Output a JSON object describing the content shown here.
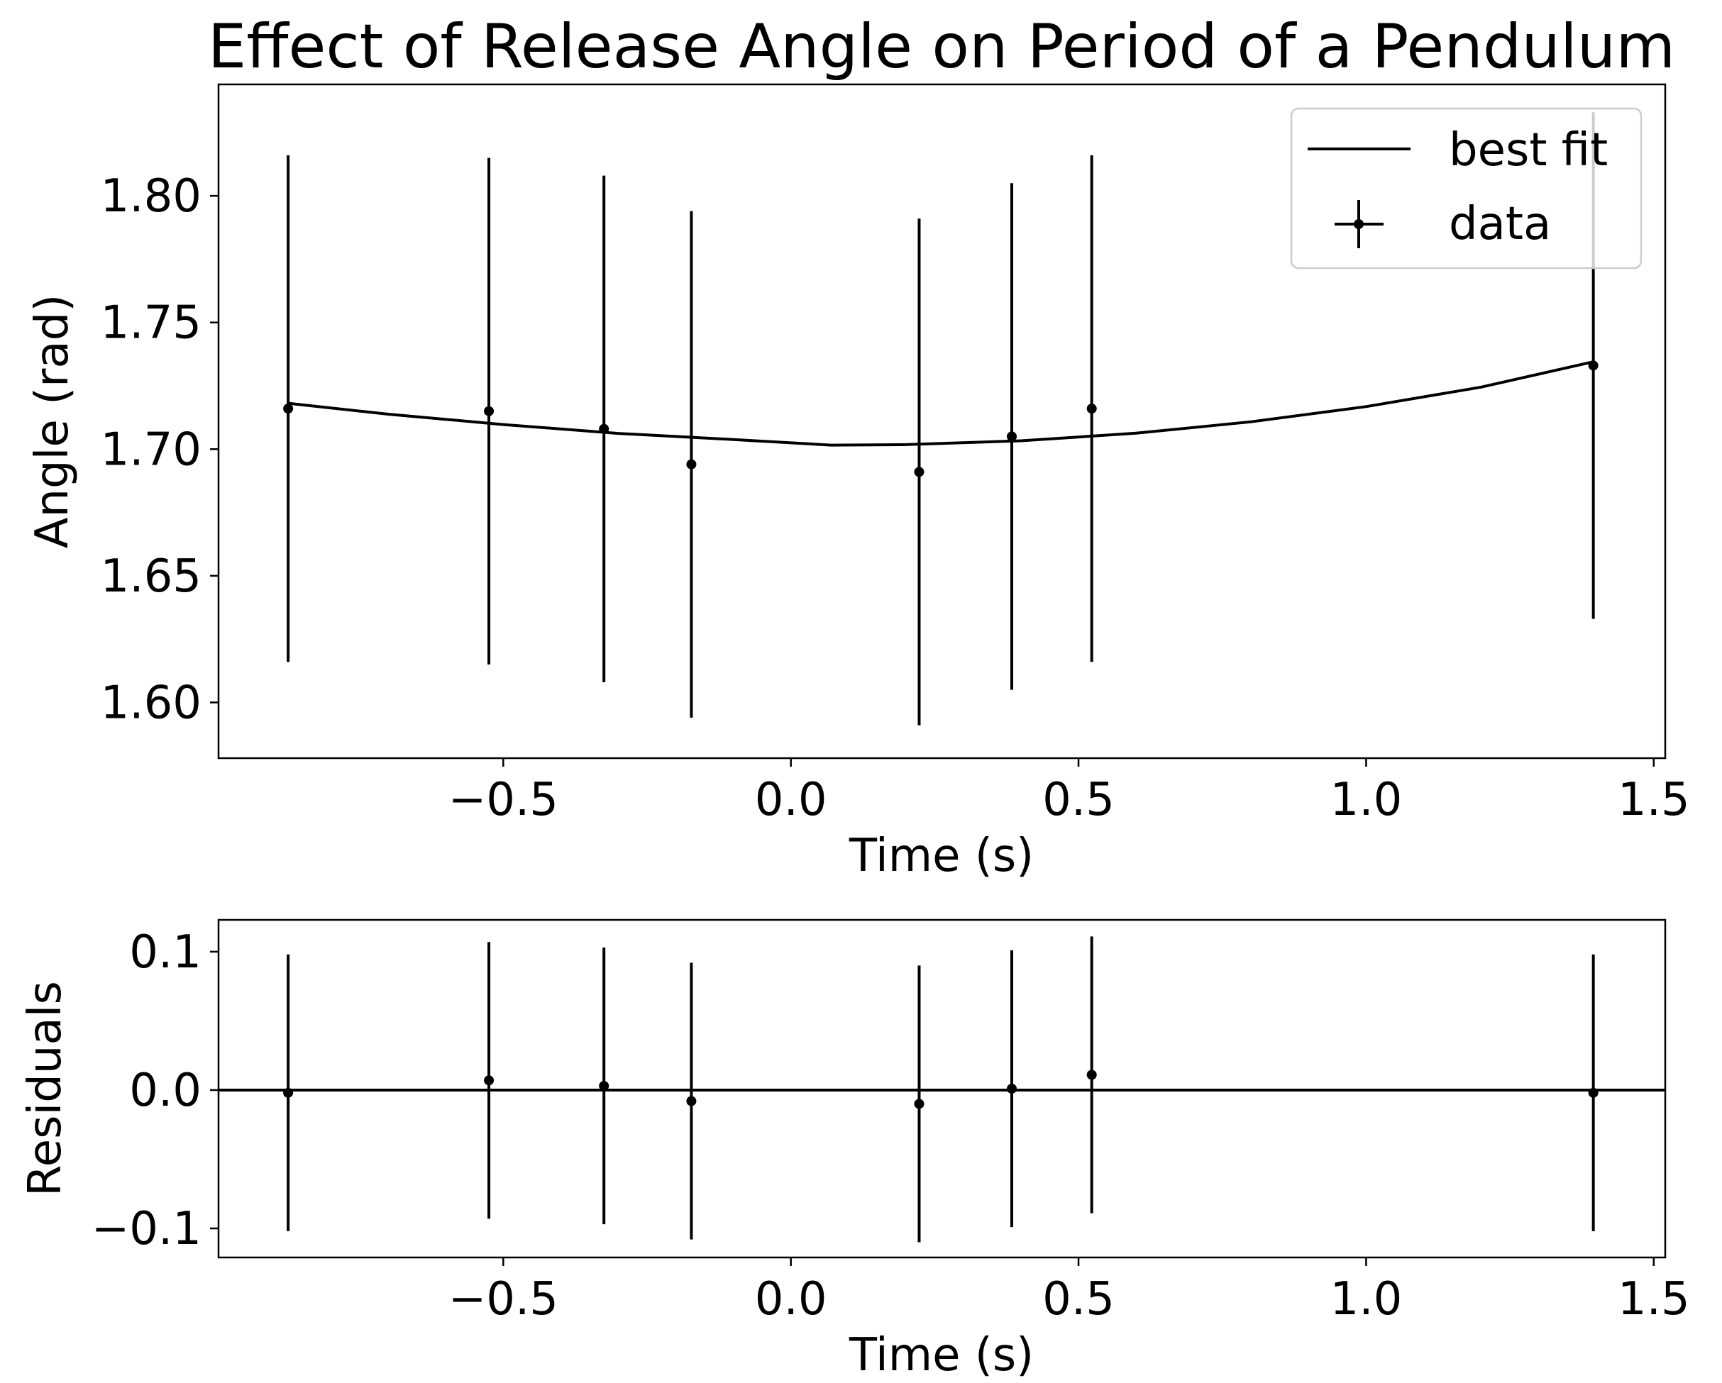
{
  "title": "Effect of Release Angle on Period of a Pendulum",
  "colors": {
    "data": "#000000",
    "fit": "#000000",
    "axes": "#000000",
    "legend_border": "#cccccc"
  },
  "legend": {
    "placement": "top-right",
    "fit_label": "best fit",
    "data_label": "data"
  },
  "chart_data": [
    {
      "panel": "main",
      "type": "line",
      "xlabel": "Time (s)",
      "ylabel": "Angle (rad)",
      "xlim": [
        -0.995,
        1.52
      ],
      "ylim": [
        1.578,
        1.844
      ],
      "xticks": [
        -0.5,
        0.0,
        0.5,
        1.0,
        1.5
      ],
      "xtick_labels": [
        "−0.5",
        "0.0",
        "0.5",
        "1.0",
        "1.5"
      ],
      "yticks": [
        1.6,
        1.65,
        1.7,
        1.75,
        1.8
      ],
      "ytick_labels": [
        "1.60",
        "1.65",
        "1.70",
        "1.75",
        "1.80"
      ],
      "grid": false,
      "series": [
        {
          "name": "data",
          "kind": "errorbar",
          "x": [
            -0.874,
            -0.525,
            -0.325,
            -0.173,
            0.223,
            0.384,
            0.523,
            1.395
          ],
          "y": [
            1.716,
            1.715,
            1.708,
            1.694,
            1.691,
            1.705,
            1.716,
            1.733
          ],
          "yerr": [
            0.1,
            0.1,
            0.1,
            0.1,
            0.1,
            0.1,
            0.1,
            0.1
          ]
        },
        {
          "name": "best fit",
          "kind": "curve",
          "x": [
            -0.874,
            -0.7,
            -0.5,
            -0.3,
            -0.1,
            0.07,
            0.2,
            0.4,
            0.6,
            0.8,
            1.0,
            1.2,
            1.395
          ],
          "y": [
            1.7181,
            1.7138,
            1.7097,
            1.7062,
            1.7038,
            1.7016,
            1.7018,
            1.7033,
            1.7063,
            1.7108,
            1.7168,
            1.7245,
            1.7345
          ]
        }
      ]
    },
    {
      "panel": "residuals",
      "type": "scatter",
      "xlabel": "Time (s)",
      "ylabel": "Residuals",
      "xlim": [
        -0.995,
        1.52
      ],
      "ylim": [
        -0.121,
        0.123
      ],
      "xticks": [
        -0.5,
        0.0,
        0.5,
        1.0,
        1.5
      ],
      "xtick_labels": [
        "−0.5",
        "0.0",
        "0.5",
        "1.0",
        "1.5"
      ],
      "yticks": [
        -0.1,
        0.0,
        0.1
      ],
      "ytick_labels": [
        "−0.1",
        "0.0",
        "0.1"
      ],
      "grid": false,
      "zero_line": 0.0,
      "series": [
        {
          "name": "data",
          "kind": "errorbar",
          "x": [
            -0.874,
            -0.525,
            -0.325,
            -0.173,
            0.223,
            0.384,
            0.523,
            1.395
          ],
          "y": [
            -0.002,
            0.007,
            0.003,
            -0.008,
            -0.01,
            0.001,
            0.011,
            -0.002
          ],
          "yerr": [
            0.1,
            0.1,
            0.1,
            0.1,
            0.1,
            0.1,
            0.1,
            0.1
          ]
        }
      ]
    }
  ]
}
